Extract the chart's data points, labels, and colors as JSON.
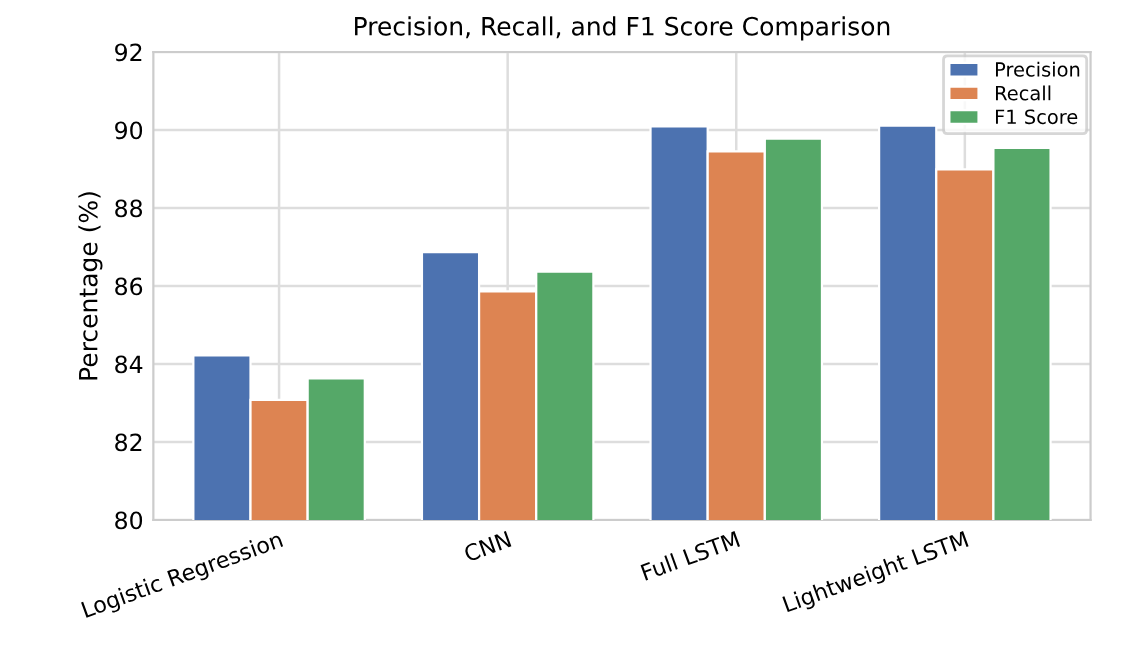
{
  "chart_data": {
    "type": "bar",
    "title": "Precision, Recall, and F1 Score Comparison",
    "ylabel": "Percentage (%)",
    "categories": [
      "Logistic Regression",
      "CNN",
      "Full LSTM",
      "Lightweight LSTM"
    ],
    "series": [
      {
        "name": "Precision",
        "color": "#4c72b0",
        "values": [
          84.22,
          86.87,
          90.09,
          90.11
        ]
      },
      {
        "name": "Recall",
        "color": "#dd8452",
        "values": [
          83.08,
          85.86,
          89.45,
          88.99
        ]
      },
      {
        "name": "F1 Score",
        "color": "#55a868",
        "values": [
          83.63,
          86.37,
          89.78,
          89.54
        ]
      }
    ],
    "ylim": [
      80,
      92
    ],
    "yticks": [
      80,
      82,
      84,
      86,
      88,
      90,
      92
    ],
    "grid": true,
    "legend": "top right"
  }
}
